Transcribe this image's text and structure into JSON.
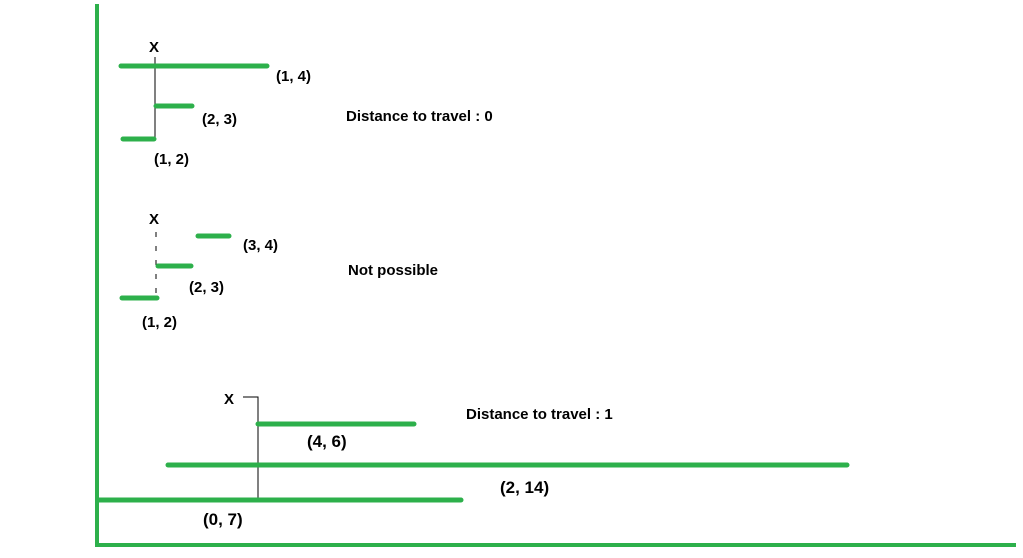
{
  "colors": {
    "segment": "#2db04b",
    "ink": "#000000",
    "background": "#ffffff"
  },
  "examples": [
    {
      "start_marker": "X",
      "caption": "Distance to travel : 0",
      "segments": [
        {
          "label": "(1, 4)"
        },
        {
          "label": "(2, 3)"
        },
        {
          "label": "(1, 2)"
        }
      ]
    },
    {
      "start_marker": "X",
      "caption": "Not possible",
      "segments": [
        {
          "label": "(3, 4)"
        },
        {
          "label": "(2, 3)"
        },
        {
          "label": "(1, 2)"
        }
      ]
    },
    {
      "start_marker": "X",
      "caption": "Distance to travel : 1",
      "segments": [
        {
          "label": "(4, 6)"
        },
        {
          "label": "(2, 14)"
        },
        {
          "label": "(0, 7)"
        }
      ]
    }
  ]
}
